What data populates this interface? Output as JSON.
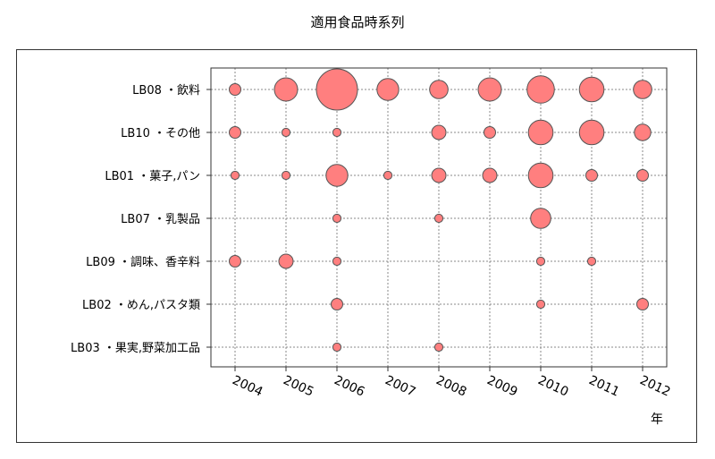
{
  "chart_data": {
    "type": "scatter",
    "title": "適用食品時系列",
    "xlabel": "年",
    "ylabel": "",
    "x": [
      "2004",
      "2005",
      "2006",
      "2007",
      "2008",
      "2009",
      "2010",
      "2011",
      "2012"
    ],
    "categories": [
      "LB08・飲料",
      "LB10・その他",
      "LB01・菓子,パン",
      "LB07・乳製品",
      "LB09・調味、香辛料",
      "LB02・めん,パスタ類",
      "LB03・果実,野菜加工品"
    ],
    "category_labels": [
      "LB08 ・飲料",
      "LB10 ・その他",
      "LB01 ・菓子,パン",
      "LB07 ・乳製品",
      "LB09 ・調味、香辛料",
      "LB02 ・めん,パスタ類",
      "LB03 ・果実,野菜加工品"
    ],
    "series": [
      {
        "category": "LB08・飲料",
        "values": [
          2,
          8,
          25,
          7,
          5,
          8,
          11,
          9,
          5
        ]
      },
      {
        "category": "LB10・その他",
        "values": [
          2,
          1,
          1,
          0,
          3,
          2,
          9,
          9,
          4
        ]
      },
      {
        "category": "LB01・菓子,パン",
        "values": [
          1,
          1,
          7,
          1,
          3,
          3,
          9,
          2,
          2
        ]
      },
      {
        "category": "LB07・乳製品",
        "values": [
          0,
          0,
          1,
          0,
          1,
          0,
          6,
          0,
          0
        ]
      },
      {
        "category": "LB09・調味、香辛料",
        "values": [
          2,
          3,
          1,
          0,
          0,
          0,
          1,
          1,
          0
        ]
      },
      {
        "category": "LB02・めん,パスタ類",
        "values": [
          0,
          0,
          2,
          0,
          0,
          0,
          1,
          0,
          2
        ]
      },
      {
        "category": "LB03・果実,野菜加工品",
        "values": [
          0,
          0,
          1,
          0,
          1,
          0,
          0,
          0,
          0
        ]
      }
    ],
    "bubble_color": "#ff7f7f",
    "bubble_stroke": "#555555",
    "grid": true,
    "grid_style": "dotted"
  }
}
